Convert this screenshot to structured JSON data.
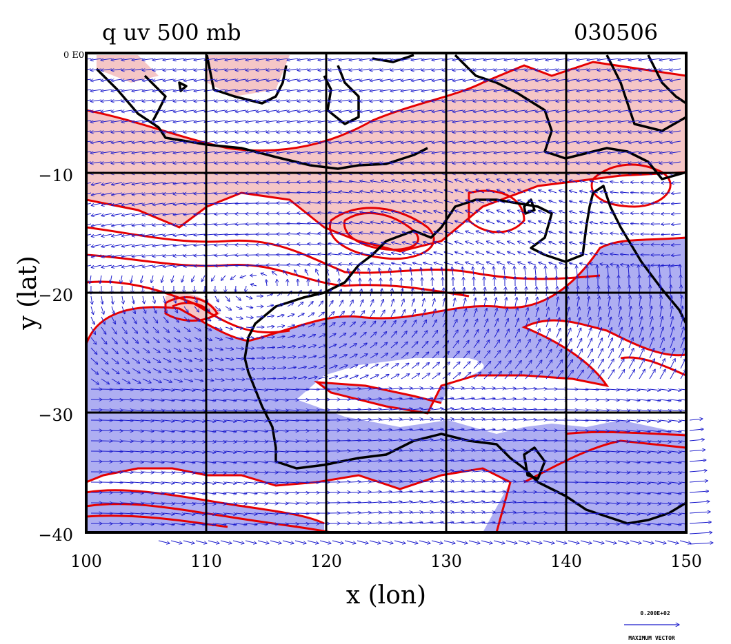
{
  "title_left": "q uv 500 mb",
  "title_right": "030506",
  "xlabel": "x (lon)",
  "ylabel": "y (lat)",
  "corner_label": "0 E0",
  "xticks": [
    "100",
    "110",
    "120",
    "130",
    "140",
    "150"
  ],
  "yticks": [
    "0",
    "−10",
    "−20",
    "−30",
    "−40"
  ],
  "legend": {
    "magnitude": "0.200E+02",
    "label": "MAXIMUM VECTOR"
  },
  "colors": {
    "moist_fill": "#f5c6c6",
    "dry_fill": "#aeaef2",
    "contour": "#e60000",
    "vector": "#1a1acc",
    "coast": "#000000",
    "grid": "#000000"
  },
  "chart_data": {
    "type": "map",
    "title": "q uv 500 mb",
    "date": "030506",
    "xlabel": "x (lon)",
    "ylabel": "y (lat)",
    "xlim": [
      100,
      150
    ],
    "ylim": [
      -40,
      0
    ],
    "grid_lon": [
      110,
      120,
      130,
      140
    ],
    "grid_lat": [
      -10,
      -20,
      -30
    ],
    "max_vector": "0.200E+02",
    "fields": [
      "specific humidity q (contours, shaded)",
      "wind uv (vectors)"
    ]
  }
}
